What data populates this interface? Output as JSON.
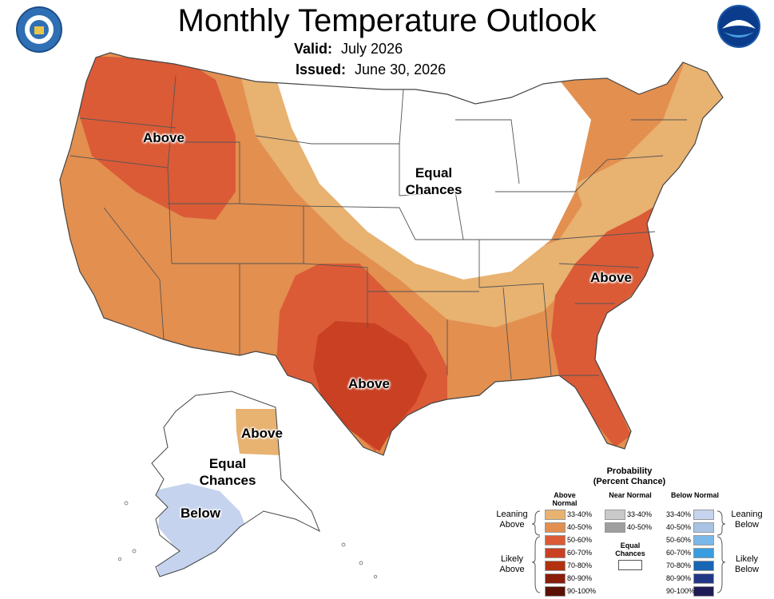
{
  "title": "Monthly Temperature Outlook",
  "valid_label": "Valid:",
  "valid_value": "July 2026",
  "issued_label": "Issued:",
  "issued_value": "June 30, 2026",
  "logos": {
    "left": "dept-of-commerce-seal-icon",
    "right": "noaa-logo-icon"
  },
  "map_labels": {
    "northwest": "Above",
    "equal_chances_center": "Equal Chances",
    "southeast": "Above",
    "texas": "Above",
    "alaska_above": "Above",
    "alaska_equal": "Equal Chances",
    "alaska_below": "Below"
  },
  "colors": {
    "above_33_40": "#e8b271",
    "above_40_50": "#e38f4f",
    "above_50_60": "#db5b37",
    "above_60_70": "#c94022",
    "above_70_80": "#b2310f",
    "above_80_90": "#8a1c0a",
    "above_90_100": "#5a1005",
    "near_33_40": "#c9c9c9",
    "near_40_50": "#9e9e9e",
    "below_33_40": "#c5d3ee",
    "below_40_50": "#a7c3e6",
    "below_50_60": "#7ab8e8",
    "below_60_70": "#3a9de0",
    "below_70_80": "#1765b4",
    "below_80_90": "#223785",
    "below_90_100": "#1f1b57",
    "border": "#555555"
  },
  "legend": {
    "title": "Probability (Percent Chance)",
    "above_header": "Above Normal",
    "near_header": "Near Normal",
    "below_header": "Below Normal",
    "leaning_above": "Leaning Above",
    "likely_above": "Likely Above",
    "leaning_below": "Leaning Below",
    "likely_below": "Likely Below",
    "equal_chances": "Equal Chances",
    "above_ranges": [
      "33-40%",
      "40-50%",
      "50-60%",
      "60-70%",
      "70-80%",
      "80-90%",
      "90-100%"
    ],
    "near_ranges": [
      "33-40%",
      "40-50%"
    ],
    "below_ranges": [
      "33-40%",
      "40-50%",
      "50-60%",
      "60-70%",
      "70-80%",
      "80-90%",
      "90-100%"
    ]
  }
}
